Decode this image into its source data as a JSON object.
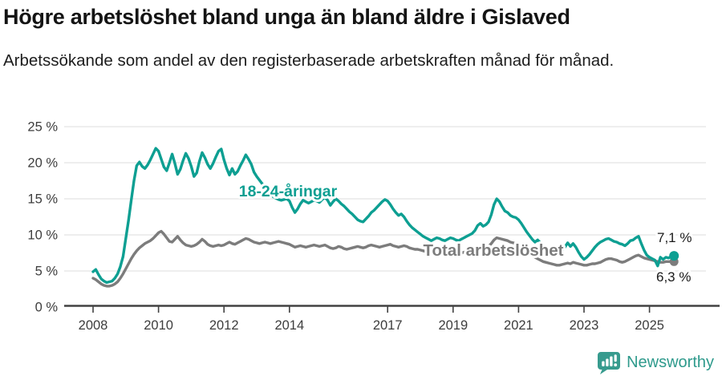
{
  "header": {
    "title": "Högre arbetslöshet bland unga än bland äldre i Gislaved",
    "subtitle": "Arbetssökande som andel av den registerbaserade arbetskraften månad för månad."
  },
  "footer": {
    "brand": "Newsworthy",
    "logo_icon": "bar-chart-speech-bubble-icon",
    "brand_color": "#2e9a8c"
  },
  "chart_data": {
    "type": "line",
    "title": "Högre arbetslöshet bland unga än bland äldre i Gislaved",
    "x_start_year": 2008,
    "x_start_month": 1,
    "x_step": "monthly",
    "xlim": [
      2007.9,
      2026.1
    ],
    "ylim": [
      0,
      25
    ],
    "grid": "horizontal",
    "legend_position": "inline-labels",
    "y_ticks": [
      {
        "value": 0,
        "label": "0 %"
      },
      {
        "value": 5,
        "label": "5 %"
      },
      {
        "value": 10,
        "label": "10 %"
      },
      {
        "value": 15,
        "label": "15 %"
      },
      {
        "value": 20,
        "label": "20 %"
      },
      {
        "value": 25,
        "label": "25 %"
      }
    ],
    "x_ticks": [
      {
        "value": 2008,
        "label": "2008"
      },
      {
        "value": 2010,
        "label": "2010"
      },
      {
        "value": 2012,
        "label": "2012"
      },
      {
        "value": 2014,
        "label": "2014"
      },
      {
        "value": 2017,
        "label": "2017"
      },
      {
        "value": 2019,
        "label": "2019"
      },
      {
        "value": 2021,
        "label": "2021"
      },
      {
        "value": 2023,
        "label": "2023"
      },
      {
        "value": 2025,
        "label": "2025"
      }
    ],
    "colors": {
      "youth": "#0d9f92",
      "total": "#7c7c7c",
      "end_label_text": "#1a1a1a",
      "axis_text": "#3d3d3d",
      "gridline": "#e3e3e3",
      "axis_line": "#424242"
    },
    "series": [
      {
        "id": "total",
        "name": "Total arbetslöshet",
        "color": "#7c7c7c",
        "end_label": "6,3 %",
        "end_value": 6.3,
        "values": [
          4.0,
          3.8,
          3.5,
          3.2,
          3.0,
          2.9,
          2.9,
          3.0,
          3.2,
          3.5,
          4.0,
          4.6,
          5.3,
          6.0,
          6.7,
          7.3,
          7.8,
          8.2,
          8.5,
          8.8,
          9.0,
          9.2,
          9.5,
          9.9,
          10.3,
          10.5,
          10.1,
          9.6,
          9.1,
          9.0,
          9.4,
          9.8,
          9.3,
          8.9,
          8.6,
          8.5,
          8.4,
          8.5,
          8.7,
          9.0,
          9.4,
          9.1,
          8.7,
          8.5,
          8.4,
          8.5,
          8.6,
          8.5,
          8.6,
          8.8,
          9.0,
          8.8,
          8.7,
          8.9,
          9.1,
          9.3,
          9.5,
          9.4,
          9.2,
          9.0,
          8.9,
          8.8,
          8.9,
          9.0,
          8.9,
          8.8,
          8.9,
          9.0,
          9.1,
          9.0,
          8.9,
          8.8,
          8.7,
          8.5,
          8.3,
          8.4,
          8.5,
          8.4,
          8.3,
          8.4,
          8.5,
          8.6,
          8.5,
          8.4,
          8.5,
          8.6,
          8.4,
          8.2,
          8.1,
          8.2,
          8.4,
          8.3,
          8.1,
          8.0,
          8.1,
          8.2,
          8.3,
          8.4,
          8.3,
          8.2,
          8.3,
          8.5,
          8.6,
          8.5,
          8.4,
          8.3,
          8.4,
          8.5,
          8.6,
          8.7,
          8.5,
          8.4,
          8.3,
          8.4,
          8.5,
          8.4,
          8.2,
          8.1,
          8.0,
          8.0,
          7.9,
          7.8,
          7.7,
          7.6,
          7.5,
          7.5,
          7.6,
          7.5,
          7.4,
          7.4,
          7.5,
          7.6,
          7.5,
          7.4,
          7.4,
          7.5,
          7.6,
          7.7,
          7.8,
          7.7,
          7.8,
          7.9,
          8.0,
          8.1,
          8.2,
          8.4,
          8.8,
          9.3,
          9.6,
          9.5,
          9.4,
          9.3,
          9.2,
          9.0,
          8.9,
          8.8,
          8.6,
          8.4,
          8.1,
          7.8,
          7.5,
          7.2,
          6.9,
          6.7,
          6.5,
          6.3,
          6.2,
          6.1,
          6.0,
          5.9,
          5.8,
          5.8,
          5.9,
          6.0,
          6.1,
          6.0,
          6.2,
          6.1,
          6.0,
          5.9,
          5.8,
          5.8,
          5.9,
          6.0,
          6.0,
          6.1,
          6.2,
          6.4,
          6.6,
          6.7,
          6.7,
          6.6,
          6.5,
          6.3,
          6.2,
          6.3,
          6.5,
          6.7,
          6.9,
          7.1,
          7.2,
          7.0,
          6.8,
          6.7,
          6.6,
          6.5,
          6.4,
          6.3,
          6.2,
          6.2,
          6.3,
          6.3,
          6.3,
          6.3
        ]
      },
      {
        "id": "youth",
        "name": "18-24-åringar",
        "color": "#0d9f92",
        "end_label": "7,1 %",
        "end_value": 7.1,
        "values": [
          4.9,
          5.2,
          4.5,
          3.9,
          3.6,
          3.4,
          3.5,
          3.6,
          4.0,
          4.6,
          5.6,
          7.0,
          9.5,
          12.0,
          14.8,
          17.5,
          19.6,
          20.1,
          19.5,
          19.2,
          19.7,
          20.4,
          21.2,
          22.0,
          21.6,
          20.5,
          19.4,
          18.9,
          20.0,
          21.2,
          19.9,
          18.4,
          19.1,
          20.3,
          21.3,
          20.6,
          19.5,
          18.1,
          18.6,
          20.2,
          21.4,
          20.7,
          19.8,
          19.2,
          19.9,
          20.8,
          21.6,
          21.9,
          20.4,
          19.2,
          18.3,
          19.2,
          18.4,
          18.8,
          19.6,
          20.3,
          21.1,
          20.5,
          19.8,
          18.7,
          18.1,
          17.6,
          17.1,
          16.6,
          16.1,
          15.7,
          15.3,
          15.1,
          14.9,
          14.8,
          14.9,
          15.0,
          14.7,
          13.8,
          13.1,
          13.6,
          14.3,
          14.8,
          14.6,
          14.4,
          14.6,
          14.8,
          14.7,
          14.5,
          14.9,
          15.2,
          14.8,
          14.1,
          14.6,
          15.0,
          14.7,
          14.3,
          14.0,
          13.6,
          13.2,
          12.9,
          12.5,
          12.1,
          11.9,
          11.8,
          12.2,
          12.6,
          13.1,
          13.4,
          13.8,
          14.2,
          14.6,
          14.9,
          14.7,
          14.2,
          13.6,
          13.1,
          12.7,
          12.9,
          12.5,
          11.9,
          11.4,
          11.0,
          10.7,
          10.4,
          10.1,
          9.8,
          9.6,
          9.4,
          9.2,
          9.4,
          9.6,
          9.5,
          9.3,
          9.2,
          9.4,
          9.6,
          9.5,
          9.3,
          9.2,
          9.4,
          9.6,
          9.8,
          10.0,
          10.2,
          10.6,
          11.3,
          11.6,
          11.2,
          11.4,
          11.8,
          12.8,
          14.2,
          15.0,
          14.6,
          13.9,
          13.3,
          13.1,
          12.7,
          12.5,
          12.4,
          12.1,
          11.6,
          11.0,
          10.4,
          9.9,
          9.4,
          9.0,
          9.3,
          8.9,
          8.4,
          8.0,
          7.7,
          7.5,
          7.3,
          7.2,
          7.4,
          7.8,
          8.3,
          8.9,
          8.4,
          8.8,
          8.3,
          7.6,
          7.0,
          6.6,
          6.9,
          7.3,
          7.8,
          8.3,
          8.7,
          9.0,
          9.2,
          9.4,
          9.5,
          9.3,
          9.1,
          9.0,
          8.8,
          8.7,
          8.5,
          8.8,
          9.2,
          9.3,
          9.6,
          9.8,
          8.8,
          7.9,
          7.2,
          6.9,
          6.7,
          6.5,
          5.7,
          6.9,
          6.6,
          6.9,
          6.8,
          7.0,
          7.1
        ]
      }
    ]
  }
}
